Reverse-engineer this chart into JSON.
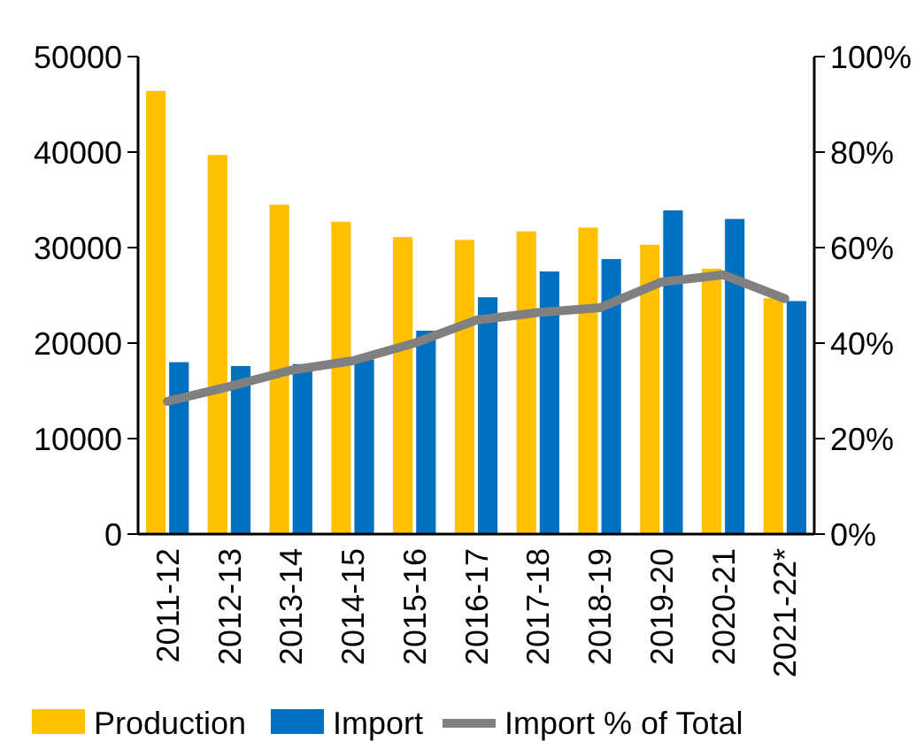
{
  "chart_data": {
    "type": "bar",
    "categories": [
      "2011-12",
      "2012-13",
      "2013-14",
      "2014-15",
      "2015-16",
      "2016-17",
      "2017-18",
      "2018-19",
      "2019-20",
      "2020-21",
      "2021-22*"
    ],
    "series": [
      {
        "name": "Production",
        "color": "#ffc000",
        "values": [
          46400,
          39700,
          34500,
          32700,
          31100,
          30800,
          31700,
          32100,
          30300,
          27800,
          24700
        ]
      },
      {
        "name": "Import",
        "color": "#0070c0",
        "values": [
          18000,
          17600,
          17800,
          18300,
          21300,
          24800,
          27500,
          28800,
          33900,
          33000,
          24400
        ]
      },
      {
        "name": "Import % of Total",
        "type": "line",
        "axis": "y2",
        "color": "#808080",
        "values": [
          27.8,
          30.9,
          34.3,
          36.3,
          40.0,
          44.8,
          46.4,
          47.4,
          52.8,
          54.3,
          49.3
        ]
      }
    ],
    "ylim": [
      0,
      50000
    ],
    "yticks": [
      0,
      10000,
      20000,
      30000,
      40000,
      50000
    ],
    "y2lim": [
      0,
      100
    ],
    "y2ticks": [
      {
        "value": 0,
        "label": "0%"
      },
      {
        "value": 20,
        "label": "20%"
      },
      {
        "value": 40,
        "label": "40%"
      },
      {
        "value": 60,
        "label": "60%"
      },
      {
        "value": 80,
        "label": "80%"
      },
      {
        "value": 100,
        "label": "100%"
      }
    ],
    "grid": false,
    "legend": "bottom",
    "marker": "none",
    "line_style": "solid"
  }
}
